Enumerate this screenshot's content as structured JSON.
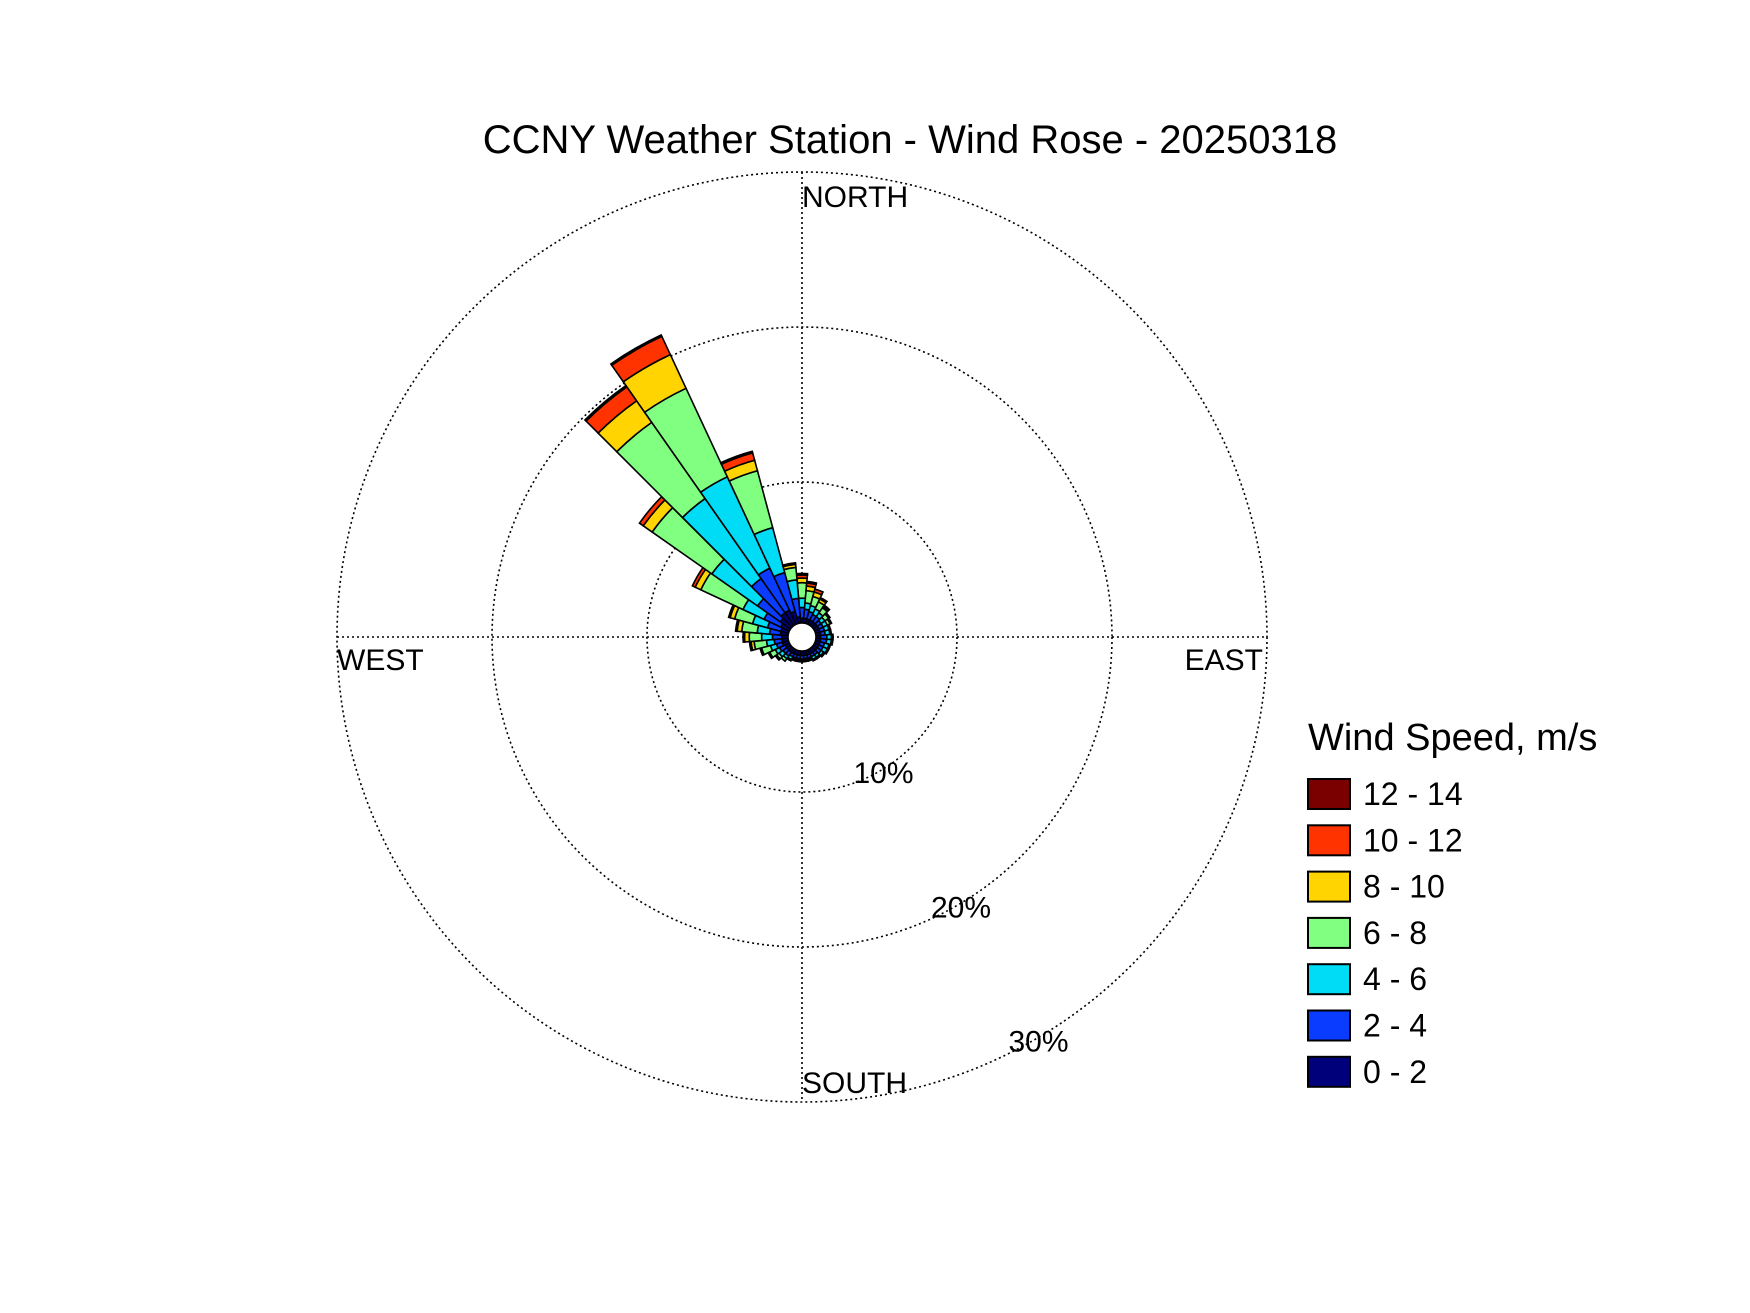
{
  "chart_data": {
    "type": "wind_rose",
    "title": "CCNY Weather Station - Wind Rose - 20250318",
    "direction_labels": {
      "north": "NORTH",
      "south": "SOUTH",
      "east": "EAST",
      "west": "WEST"
    },
    "radial_axis": {
      "unit": "%",
      "max": 30,
      "ticks": [
        10,
        20,
        30
      ],
      "tick_labels": [
        "10%",
        "20%",
        "30%"
      ],
      "label_bearing_deg": 150
    },
    "legend": {
      "title": "Wind Speed, m/s",
      "placement": "right",
      "bins": [
        {
          "label": "12 - 14",
          "color": "#7a0000"
        },
        {
          "label": "10 - 12",
          "color": "#ff3300"
        },
        {
          "label": "8 - 10",
          "color": "#ffd400"
        },
        {
          "label": "6 - 8",
          "color": "#80ff80"
        },
        {
          "label": "4 - 6",
          "color": "#00dcf5"
        },
        {
          "label": "2 - 4",
          "color": "#0a3cff"
        },
        {
          "label": "0 - 2",
          "color": "#00007a"
        }
      ]
    },
    "sector_width_deg": 10,
    "sectors": [
      {
        "direction_deg": 0,
        "cumulative": [
          0.3,
          1.0,
          1.6,
          2.6,
          2.9,
          3.1,
          3.2
        ]
      },
      {
        "direction_deg": 10,
        "cumulative": [
          0.3,
          0.9,
          1.3,
          2.1,
          2.4,
          2.6,
          2.7
        ]
      },
      {
        "direction_deg": 20,
        "cumulative": [
          0.3,
          0.8,
          1.2,
          1.8,
          2.1,
          2.3,
          2.3
        ]
      },
      {
        "direction_deg": 30,
        "cumulative": [
          0.3,
          0.7,
          1.1,
          1.6,
          1.8,
          1.9,
          1.9
        ]
      },
      {
        "direction_deg": 40,
        "cumulative": [
          0.3,
          0.7,
          1.0,
          1.4,
          1.5,
          1.6,
          1.6
        ]
      },
      {
        "direction_deg": 50,
        "cumulative": [
          0.3,
          0.6,
          0.9,
          1.2,
          1.3,
          1.3,
          1.3
        ]
      },
      {
        "direction_deg": 60,
        "cumulative": [
          0.3,
          0.6,
          0.9,
          1.1,
          1.2,
          1.2,
          1.2
        ]
      },
      {
        "direction_deg": 70,
        "cumulative": [
          0.3,
          0.6,
          0.9,
          1.0,
          1.0,
          1.0,
          1.0
        ]
      },
      {
        "direction_deg": 80,
        "cumulative": [
          0.3,
          0.6,
          0.9,
          1.0,
          1.0,
          1.0,
          1.0
        ]
      },
      {
        "direction_deg": 90,
        "cumulative": [
          0.3,
          0.7,
          1.0,
          1.1,
          1.1,
          1.1,
          1.1
        ]
      },
      {
        "direction_deg": 100,
        "cumulative": [
          0.3,
          0.7,
          1.0,
          1.1,
          1.1,
          1.1,
          1.1
        ]
      },
      {
        "direction_deg": 110,
        "cumulative": [
          0.3,
          0.6,
          0.9,
          1.0,
          1.0,
          1.0,
          1.0
        ]
      },
      {
        "direction_deg": 120,
        "cumulative": [
          0.3,
          0.6,
          0.9,
          1.0,
          1.0,
          1.0,
          1.0
        ]
      },
      {
        "direction_deg": 130,
        "cumulative": [
          0.3,
          0.6,
          0.8,
          0.9,
          0.9,
          0.9,
          0.9
        ]
      },
      {
        "direction_deg": 140,
        "cumulative": [
          0.3,
          0.5,
          0.7,
          0.8,
          0.8,
          0.8,
          0.8
        ]
      },
      {
        "direction_deg": 150,
        "cumulative": [
          0.3,
          0.5,
          0.7,
          0.8,
          0.8,
          0.8,
          0.8
        ]
      },
      {
        "direction_deg": 160,
        "cumulative": [
          0.3,
          0.5,
          0.6,
          0.7,
          0.7,
          0.7,
          0.7
        ]
      },
      {
        "direction_deg": 170,
        "cumulative": [
          0.3,
          0.5,
          0.6,
          0.7,
          0.7,
          0.7,
          0.7
        ]
      },
      {
        "direction_deg": 180,
        "cumulative": [
          0.3,
          0.5,
          0.6,
          0.7,
          0.7,
          0.7,
          0.7
        ]
      },
      {
        "direction_deg": 190,
        "cumulative": [
          0.3,
          0.5,
          0.6,
          0.7,
          0.7,
          0.7,
          0.7
        ]
      },
      {
        "direction_deg": 200,
        "cumulative": [
          0.3,
          0.5,
          0.6,
          0.7,
          0.7,
          0.7,
          0.7
        ]
      },
      {
        "direction_deg": 210,
        "cumulative": [
          0.3,
          0.5,
          0.7,
          0.8,
          0.8,
          0.8,
          0.8
        ]
      },
      {
        "direction_deg": 220,
        "cumulative": [
          0.3,
          0.6,
          0.8,
          1.0,
          1.0,
          1.0,
          1.0
        ]
      },
      {
        "direction_deg": 230,
        "cumulative": [
          0.3,
          0.6,
          0.9,
          1.1,
          1.2,
          1.2,
          1.2
        ]
      },
      {
        "direction_deg": 240,
        "cumulative": [
          0.3,
          0.7,
          1.0,
          1.4,
          1.5,
          1.5,
          1.5
        ]
      },
      {
        "direction_deg": 250,
        "cumulative": [
          0.4,
          0.8,
          1.2,
          1.8,
          1.9,
          1.9,
          1.9
        ]
      },
      {
        "direction_deg": 260,
        "cumulative": [
          0.4,
          0.9,
          1.4,
          2.2,
          2.4,
          2.5,
          2.5
        ]
      },
      {
        "direction_deg": 270,
        "cumulative": [
          0.4,
          1.0,
          1.7,
          2.5,
          2.8,
          2.9,
          2.9
        ]
      },
      {
        "direction_deg": 280,
        "cumulative": [
          0.5,
          1.2,
          2.0,
          3.0,
          3.3,
          3.4,
          3.4
        ]
      },
      {
        "direction_deg": 290,
        "cumulative": [
          0.5,
          1.4,
          2.4,
          3.6,
          3.9,
          4.0,
          4.0
        ]
      },
      {
        "direction_deg": 300,
        "cumulative": [
          0.6,
          1.8,
          3.3,
          6.3,
          6.7,
          6.9,
          6.9
        ]
      },
      {
        "direction_deg": 310,
        "cumulative": [
          0.8,
          2.6,
          6.2,
          10.9,
          11.6,
          11.9,
          11.9
        ]
      },
      {
        "direction_deg": 320,
        "cumulative": [
          1.0,
          3.7,
          10.0,
          16.0,
          17.7,
          18.8,
          18.9
        ]
      },
      {
        "direction_deg": 330,
        "cumulative": [
          1.0,
          4.0,
          10.5,
          16.8,
          19.2,
          20.5,
          20.6
        ]
      },
      {
        "direction_deg": 340,
        "cumulative": [
          0.8,
          3.4,
          6.4,
          10.2,
          10.9,
          11.4,
          11.5
        ]
      },
      {
        "direction_deg": 350,
        "cumulative": [
          0.4,
          1.6,
          2.8,
          3.6,
          3.8,
          3.9,
          3.9
        ]
      }
    ],
    "grid": true
  }
}
